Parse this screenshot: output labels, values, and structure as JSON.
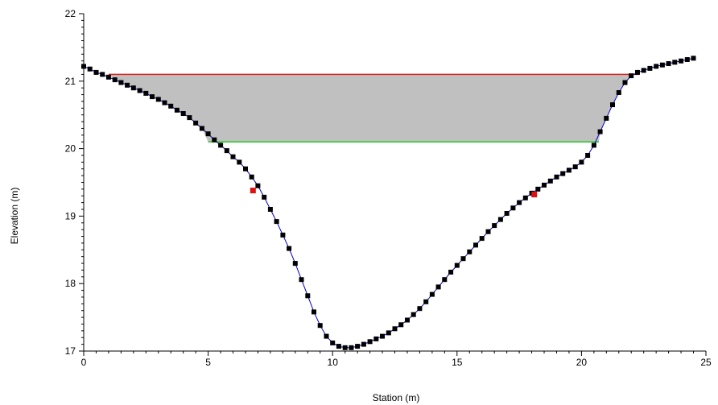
{
  "chart_data": {
    "type": "line",
    "title": "",
    "xlabel": "Station (m)",
    "ylabel": "Elevation (m)",
    "xlim": [
      0,
      25
    ],
    "ylim": [
      17,
      22
    ],
    "xticks": [
      "0",
      "5",
      "10",
      "15",
      "20",
      "25"
    ],
    "yticks": [
      "17",
      "18",
      "19",
      "20",
      "21",
      "22"
    ],
    "grid": false,
    "legend": "none",
    "colors": {
      "ground_line": "#0000cc",
      "marker": "#000000",
      "upper_level": "#dd2222",
      "lower_level": "#22cc22",
      "fill": "#c0c0c0",
      "bank_station": "#dd1111"
    },
    "series": [
      {
        "role": "ground-profile",
        "x": [
          0,
          0.25,
          0.5,
          0.75,
          1.0,
          1.25,
          1.5,
          1.75,
          2.0,
          2.25,
          2.5,
          2.75,
          3.0,
          3.25,
          3.5,
          3.75,
          4.0,
          4.25,
          4.5,
          4.75,
          5.0,
          5.25,
          5.5,
          5.75,
          6.0,
          6.25,
          6.5,
          6.75,
          7.0,
          7.25,
          7.5,
          7.75,
          8.0,
          8.25,
          8.5,
          8.75,
          9.0,
          9.25,
          9.5,
          9.75,
          10.0,
          10.25,
          10.5,
          10.75,
          11.0,
          11.25,
          11.5,
          11.75,
          12.0,
          12.25,
          12.5,
          12.75,
          13.0,
          13.25,
          13.5,
          13.75,
          14.0,
          14.25,
          14.5,
          14.75,
          15.0,
          15.25,
          15.5,
          15.75,
          16.0,
          16.25,
          16.5,
          16.75,
          17.0,
          17.25,
          17.5,
          17.75,
          18.0,
          18.25,
          18.5,
          18.75,
          19.0,
          19.25,
          19.5,
          19.75,
          20.0,
          20.25,
          20.5,
          20.75,
          21.0,
          21.25,
          21.5,
          21.75,
          22.0,
          22.25,
          22.5,
          22.75,
          23.0,
          23.25,
          23.5,
          23.75,
          24.0,
          24.25,
          24.5
        ],
        "y": [
          21.22,
          21.18,
          21.13,
          21.1,
          21.06,
          21.02,
          20.98,
          20.94,
          20.9,
          20.86,
          20.82,
          20.77,
          20.73,
          20.68,
          20.63,
          20.57,
          20.52,
          20.46,
          20.38,
          20.3,
          20.22,
          20.13,
          20.05,
          19.97,
          19.88,
          19.8,
          19.7,
          19.58,
          19.45,
          19.28,
          19.1,
          18.92,
          18.72,
          18.52,
          18.3,
          18.06,
          17.82,
          17.58,
          17.38,
          17.22,
          17.12,
          17.07,
          17.05,
          17.05,
          17.07,
          17.1,
          17.14,
          17.18,
          17.22,
          17.27,
          17.33,
          17.39,
          17.46,
          17.54,
          17.63,
          17.73,
          17.84,
          17.95,
          18.06,
          18.17,
          18.27,
          18.37,
          18.47,
          18.57,
          18.67,
          18.77,
          18.86,
          18.95,
          19.04,
          19.12,
          19.2,
          19.27,
          19.34,
          19.4,
          19.46,
          19.52,
          19.58,
          19.63,
          19.68,
          19.73,
          19.8,
          19.9,
          20.05,
          20.25,
          20.45,
          20.65,
          20.83,
          20.98,
          21.08,
          21.13,
          21.16,
          21.19,
          21.22,
          21.24,
          21.26,
          21.28,
          21.3,
          21.32,
          21.34
        ]
      },
      {
        "role": "upper-water-level",
        "x": [
          1.0,
          22.3
        ],
        "y": [
          21.1,
          21.1
        ]
      },
      {
        "role": "lower-water-level",
        "x": [
          5.0,
          20.7
        ],
        "y": [
          20.1,
          20.1
        ]
      }
    ],
    "bank_stations": [
      {
        "x": 6.8,
        "y": 19.38
      },
      {
        "x": 18.1,
        "y": 19.32
      }
    ]
  }
}
